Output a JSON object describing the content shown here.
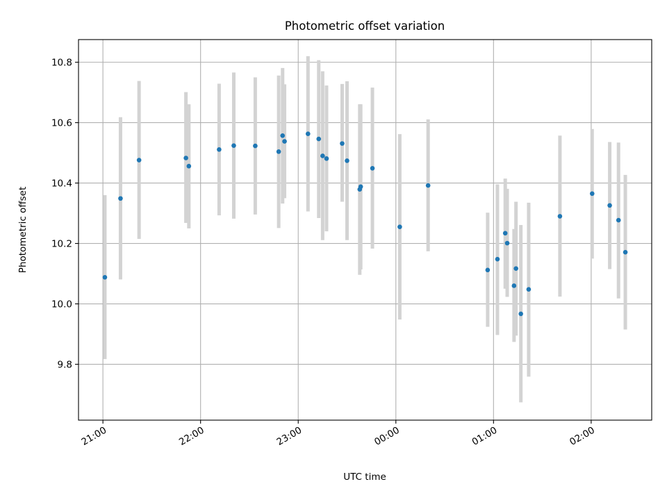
{
  "chart_data": {
    "type": "scatter",
    "title": "Photometric offset variation",
    "xlabel": "UTC time",
    "ylabel": "Photometric offset",
    "x_unit": "hours",
    "xlim": [
      20.75,
      26.62
    ],
    "ylim": [
      9.615,
      10.875
    ],
    "x_ticks": [
      {
        "value": 21,
        "label": "21:00"
      },
      {
        "value": 22,
        "label": "22:00"
      },
      {
        "value": 23,
        "label": "23:00"
      },
      {
        "value": 24,
        "label": "00:00"
      },
      {
        "value": 25,
        "label": "01:00"
      },
      {
        "value": 26,
        "label": "02:00"
      }
    ],
    "y_ticks": [
      {
        "value": 9.8,
        "label": "9.8"
      },
      {
        "value": 10.0,
        "label": "10.0"
      },
      {
        "value": 10.2,
        "label": "10.2"
      },
      {
        "value": 10.4,
        "label": "10.4"
      },
      {
        "value": 10.6,
        "label": "10.6"
      },
      {
        "value": 10.8,
        "label": "10.8"
      }
    ],
    "grid": true,
    "colors": {
      "point": "#1f77b4",
      "errorbar": "#d3d3d3",
      "grid": "#b0b0b0"
    },
    "points": [
      {
        "x": 21.02,
        "y": 10.088,
        "lo": 9.817,
        "hi": 10.36
      },
      {
        "x": 21.18,
        "y": 10.349,
        "lo": 10.081,
        "hi": 10.618
      },
      {
        "x": 21.37,
        "y": 10.476,
        "lo": 10.215,
        "hi": 10.738
      },
      {
        "x": 21.85,
        "y": 10.483,
        "lo": 10.268,
        "hi": 10.701
      },
      {
        "x": 21.88,
        "y": 10.456,
        "lo": 10.25,
        "hi": 10.661
      },
      {
        "x": 22.19,
        "y": 10.511,
        "lo": 10.293,
        "hi": 10.729
      },
      {
        "x": 22.34,
        "y": 10.524,
        "lo": 10.282,
        "hi": 10.766
      },
      {
        "x": 22.56,
        "y": 10.523,
        "lo": 10.296,
        "hi": 10.75
      },
      {
        "x": 22.8,
        "y": 10.504,
        "lo": 10.251,
        "hi": 10.756
      },
      {
        "x": 22.84,
        "y": 10.557,
        "lo": 10.332,
        "hi": 10.781
      },
      {
        "x": 22.86,
        "y": 10.538,
        "lo": 10.35,
        "hi": 10.727
      },
      {
        "x": 23.1,
        "y": 10.563,
        "lo": 10.306,
        "hi": 10.82
      },
      {
        "x": 23.21,
        "y": 10.546,
        "lo": 10.284,
        "hi": 10.807
      },
      {
        "x": 23.25,
        "y": 10.49,
        "lo": 10.211,
        "hi": 10.77
      },
      {
        "x": 23.29,
        "y": 10.481,
        "lo": 10.24,
        "hi": 10.723
      },
      {
        "x": 23.45,
        "y": 10.531,
        "lo": 10.338,
        "hi": 10.728
      },
      {
        "x": 23.5,
        "y": 10.474,
        "lo": 10.211,
        "hi": 10.737
      },
      {
        "x": 23.63,
        "y": 10.379,
        "lo": 10.096,
        "hi": 10.661
      },
      {
        "x": 23.64,
        "y": 10.388,
        "lo": 10.114,
        "hi": 10.661
      },
      {
        "x": 23.76,
        "y": 10.449,
        "lo": 10.183,
        "hi": 10.716
      },
      {
        "x": 24.04,
        "y": 10.255,
        "lo": 9.948,
        "hi": 10.562
      },
      {
        "x": 24.33,
        "y": 10.392,
        "lo": 10.174,
        "hi": 10.611
      },
      {
        "x": 24.94,
        "y": 10.112,
        "lo": 9.924,
        "hi": 10.302
      },
      {
        "x": 25.04,
        "y": 10.148,
        "lo": 9.897,
        "hi": 10.396
      },
      {
        "x": 25.12,
        "y": 10.234,
        "lo": 10.05,
        "hi": 10.415
      },
      {
        "x": 25.14,
        "y": 10.201,
        "lo": 10.023,
        "hi": 10.381
      },
      {
        "x": 25.21,
        "y": 10.06,
        "lo": 9.874,
        "hi": 10.248
      },
      {
        "x": 25.23,
        "y": 10.117,
        "lo": 9.895,
        "hi": 10.338
      },
      {
        "x": 25.28,
        "y": 9.967,
        "lo": 9.674,
        "hi": 10.261
      },
      {
        "x": 25.36,
        "y": 10.048,
        "lo": 9.759,
        "hi": 10.335
      },
      {
        "x": 25.68,
        "y": 10.29,
        "lo": 10.024,
        "hi": 10.557
      },
      {
        "x": 26.01,
        "y": 10.365,
        "lo": 10.15,
        "hi": 10.579
      },
      {
        "x": 26.19,
        "y": 10.326,
        "lo": 10.115,
        "hi": 10.536
      },
      {
        "x": 26.28,
        "y": 10.277,
        "lo": 10.018,
        "hi": 10.534
      },
      {
        "x": 26.35,
        "y": 10.171,
        "lo": 9.915,
        "hi": 10.427
      }
    ]
  }
}
